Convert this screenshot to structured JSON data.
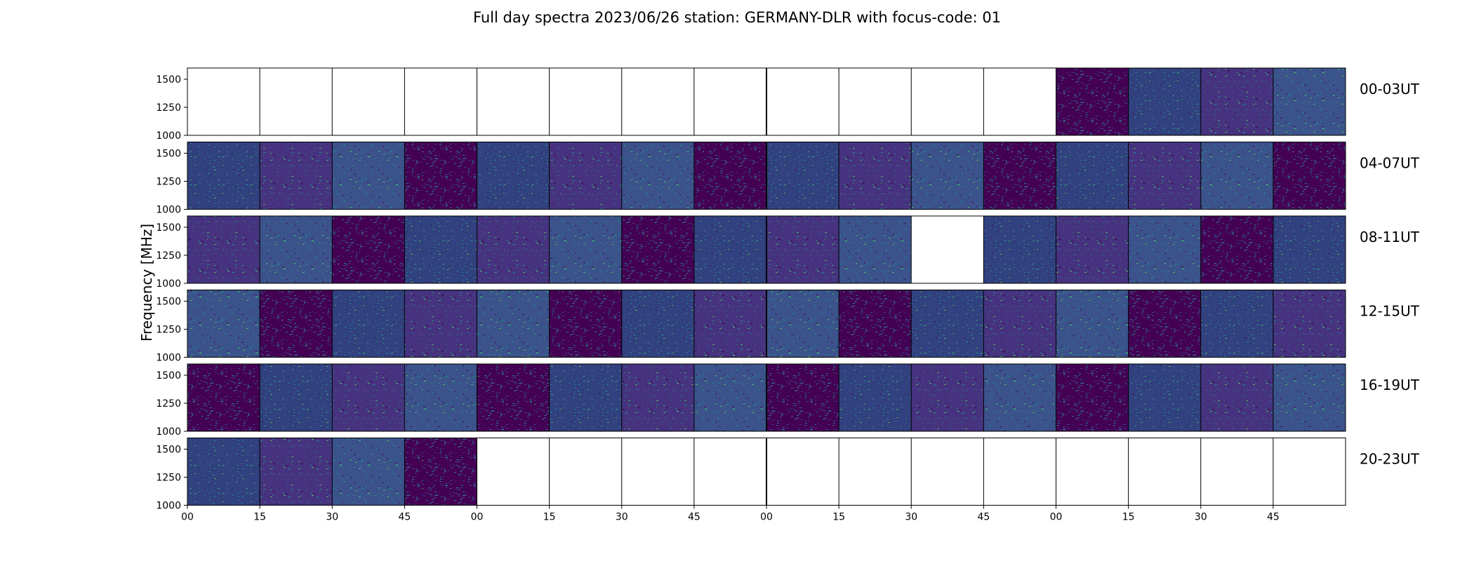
{
  "chart_data": {
    "type": "heatmap",
    "title": "Full day spectra 2023/06/26 station: GERMANY-DLR with focus-code: 01",
    "ylabel": "Frequency [MHz]",
    "xlabel": "",
    "ylim": [
      1000,
      1600
    ],
    "yticks": [
      "1500",
      "1250",
      "1000"
    ],
    "xtick_labels": [
      "00",
      "15",
      "30",
      "45",
      "00",
      "15",
      "30",
      "45",
      "00",
      "15",
      "30",
      "45",
      "00",
      "15",
      "30",
      "45"
    ],
    "colormap": [
      "#440154",
      "#3b528b",
      "#21918c",
      "#5ec962"
    ],
    "rows": [
      {
        "label": "00-03UT",
        "present": [
          0,
          0,
          0,
          0,
          0,
          0,
          0,
          0,
          0,
          0,
          0,
          0,
          1,
          1,
          1,
          1
        ]
      },
      {
        "label": "04-07UT",
        "present": [
          1,
          1,
          1,
          1,
          1,
          1,
          1,
          1,
          1,
          1,
          1,
          1,
          1,
          1,
          1,
          1
        ]
      },
      {
        "label": "08-11UT",
        "present": [
          1,
          1,
          1,
          1,
          1,
          1,
          1,
          1,
          1,
          1,
          0,
          1,
          1,
          1,
          1,
          1
        ]
      },
      {
        "label": "12-15UT",
        "present": [
          1,
          1,
          1,
          1,
          1,
          1,
          1,
          1,
          1,
          1,
          1,
          1,
          1,
          1,
          1,
          1
        ]
      },
      {
        "label": "16-19UT",
        "present": [
          1,
          1,
          1,
          1,
          1,
          1,
          1,
          1,
          1,
          1,
          1,
          1,
          1,
          1,
          1,
          1
        ]
      },
      {
        "label": "20-23UT",
        "present": [
          1,
          1,
          1,
          1,
          0,
          0,
          0,
          0,
          0,
          0,
          0,
          0,
          0,
          0,
          0,
          0
        ]
      }
    ]
  }
}
